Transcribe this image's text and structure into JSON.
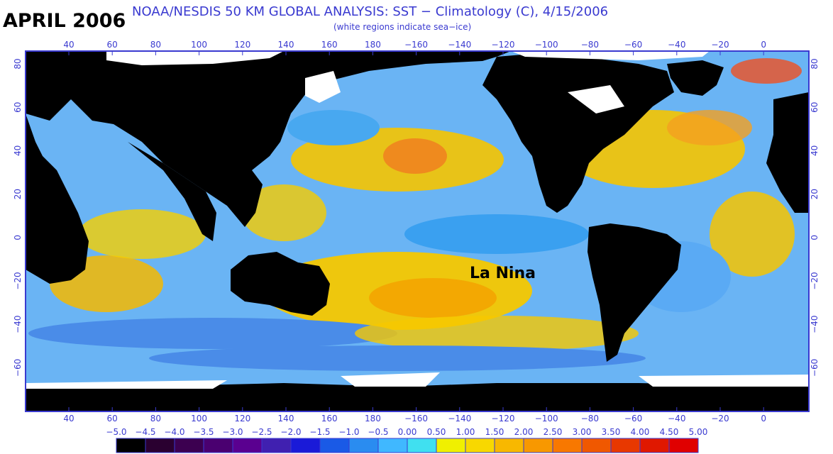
{
  "header": {
    "big_title": "APRIL 2006",
    "main_title": "NOAA/NESDIS 50 KM GLOBAL ANALYSIS: SST − Climatology (C), 4/15/2006",
    "subtitle": "(white regions indicate sea−ice)"
  },
  "map": {
    "annotation": "La Nina",
    "lon_labels": [
      "40",
      "60",
      "80",
      "100",
      "120",
      "140",
      "160",
      "180",
      "−160",
      "−140",
      "−120",
      "−100",
      "−80",
      "−60",
      "−40",
      "−20",
      "0"
    ],
    "lat_labels": [
      "80",
      "60",
      "40",
      "20",
      "0",
      "−20",
      "−40",
      "−60"
    ],
    "colors": {
      "land": "#000000",
      "sea_ice": "#ffffff",
      "frame": "#3a3ad0"
    }
  },
  "colorbar": {
    "labels": [
      "−5.0",
      "−4.5",
      "−4.0",
      "−3.5",
      "−3.0",
      "−2.5",
      "−2.0",
      "−1.5",
      "−1.0",
      "−0.5",
      "0.00",
      "0.50",
      "1.00",
      "1.50",
      "2.00",
      "2.50",
      "3.00",
      "3.50",
      "4.00",
      "4.50",
      "5.00"
    ],
    "colors": [
      "#000000",
      "#2a0030",
      "#3c0050",
      "#4a0070",
      "#5a0090",
      "#4020b0",
      "#1a1ad8",
      "#1a5ae6",
      "#2a8cf0",
      "#40b8ff",
      "#40e0f0",
      "#f0f000",
      "#f8d800",
      "#f8b800",
      "#f89800",
      "#f87800",
      "#f05800",
      "#e83800",
      "#e01800",
      "#e00000"
    ]
  }
}
